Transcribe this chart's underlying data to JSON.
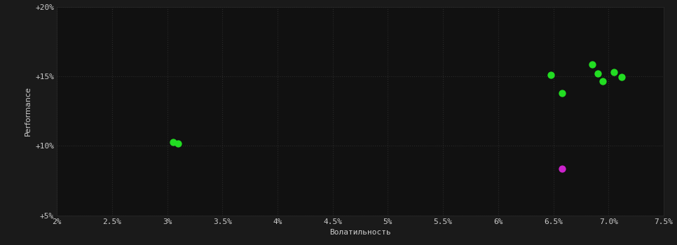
{
  "background_color": "#1a1a1a",
  "plot_bg_color": "#111111",
  "grid_color": "#2a2a2a",
  "text_color": "#cccccc",
  "xlabel": "Волатильность",
  "ylabel": "Performance",
  "xlim": [
    0.02,
    0.075
  ],
  "ylim": [
    0.05,
    0.2
  ],
  "xticks": [
    0.02,
    0.025,
    0.03,
    0.035,
    0.04,
    0.045,
    0.05,
    0.055,
    0.06,
    0.065,
    0.07,
    0.075
  ],
  "yticks": [
    0.05,
    0.1,
    0.15,
    0.2
  ],
  "green_points": [
    [
      0.0305,
      0.1025
    ],
    [
      0.031,
      0.1015
    ],
    [
      0.0648,
      0.151
    ],
    [
      0.0658,
      0.138
    ],
    [
      0.0685,
      0.1585
    ],
    [
      0.069,
      0.152
    ],
    [
      0.0695,
      0.1465
    ],
    [
      0.0705,
      0.153
    ],
    [
      0.0712,
      0.1495
    ]
  ],
  "magenta_points": [
    [
      0.0658,
      0.0835
    ]
  ],
  "green_color": "#22dd22",
  "magenta_color": "#cc22cc",
  "marker_size": 55,
  "label_fontsize": 8,
  "tick_fontsize": 8
}
